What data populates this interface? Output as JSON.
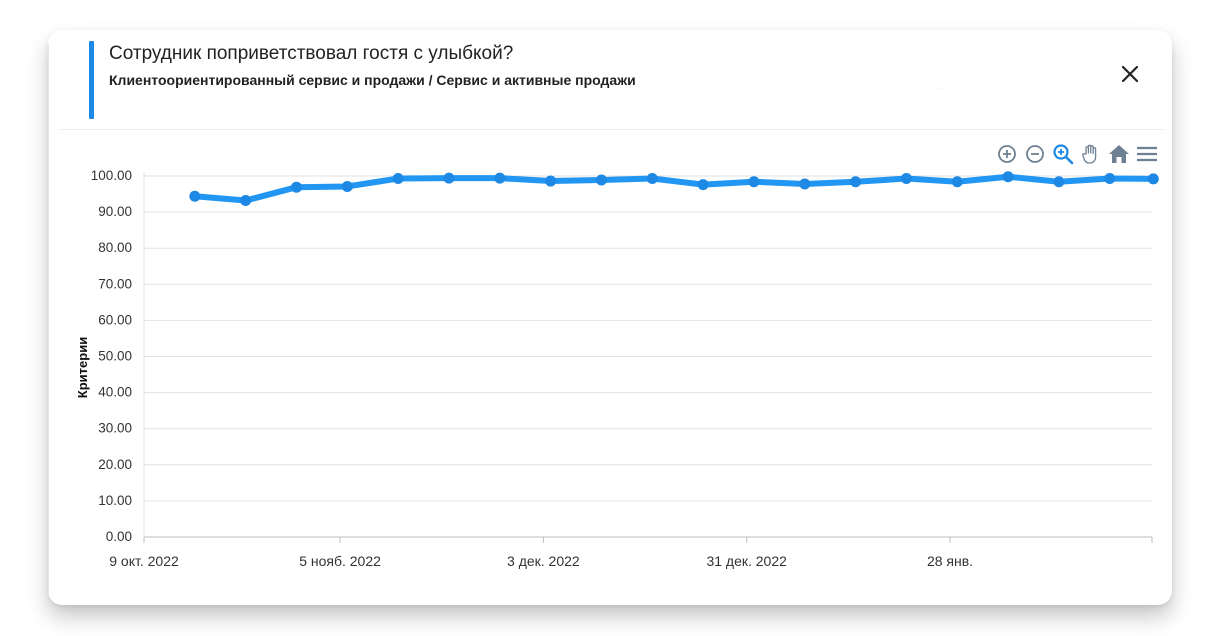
{
  "header": {
    "title": "Сотрудник поприветствовал гостя с улыбкой?",
    "subtitle": "Клиентоориентированный сервис и продажи / Сервис и активные продажи"
  },
  "icons": {
    "close": "close-icon",
    "zoom_in": "zoom-in-icon",
    "zoom_out": "zoom-out-icon",
    "zoom_select": "magnifier-icon",
    "pan": "hand-icon",
    "reset": "home-icon",
    "menu": "hamburger-menu-icon"
  },
  "colors": {
    "accent": "#1e88e5",
    "series": "#2196f3"
  },
  "chart_data": {
    "type": "line",
    "ylabel": "Критерии",
    "ylim": [
      0,
      100
    ],
    "yticks": [
      "0.00",
      "10.00",
      "20.00",
      "30.00",
      "40.00",
      "50.00",
      "60.00",
      "70.00",
      "80.00",
      "90.00",
      "100.00"
    ],
    "xtick_labels": [
      "9 окт. 2022",
      "5 нояб. 2022",
      "3 дек. 2022",
      "31 дек. 2022",
      "28 янв."
    ],
    "xtick_dates": [
      "2022-10-09",
      "2022-11-05",
      "2022-12-03",
      "2022-12-31",
      "2023-01-28"
    ],
    "xlim": [
      "2022-10-09",
      "2023-02-18"
    ],
    "grid": true,
    "series": [
      {
        "x": [
          "2022-10-16",
          "2022-10-23",
          "2022-10-30",
          "2022-11-06",
          "2022-11-13",
          "2022-11-20",
          "2022-11-27",
          "2022-12-04",
          "2022-12-11",
          "2022-12-18",
          "2022-12-25",
          "2023-01-01",
          "2023-01-08",
          "2023-01-15",
          "2023-01-22",
          "2023-01-29",
          "2023-02-05",
          "2023-02-12",
          "2023-02-19",
          "2023-02-25"
        ],
        "values": [
          94.4,
          93.2,
          96.9,
          97.1,
          99.3,
          99.4,
          99.4,
          98.6,
          98.9,
          99.3,
          97.6,
          98.4,
          97.8,
          98.4,
          99.3,
          98.4,
          99.8,
          98.4,
          99.3,
          99.2
        ]
      }
    ]
  }
}
